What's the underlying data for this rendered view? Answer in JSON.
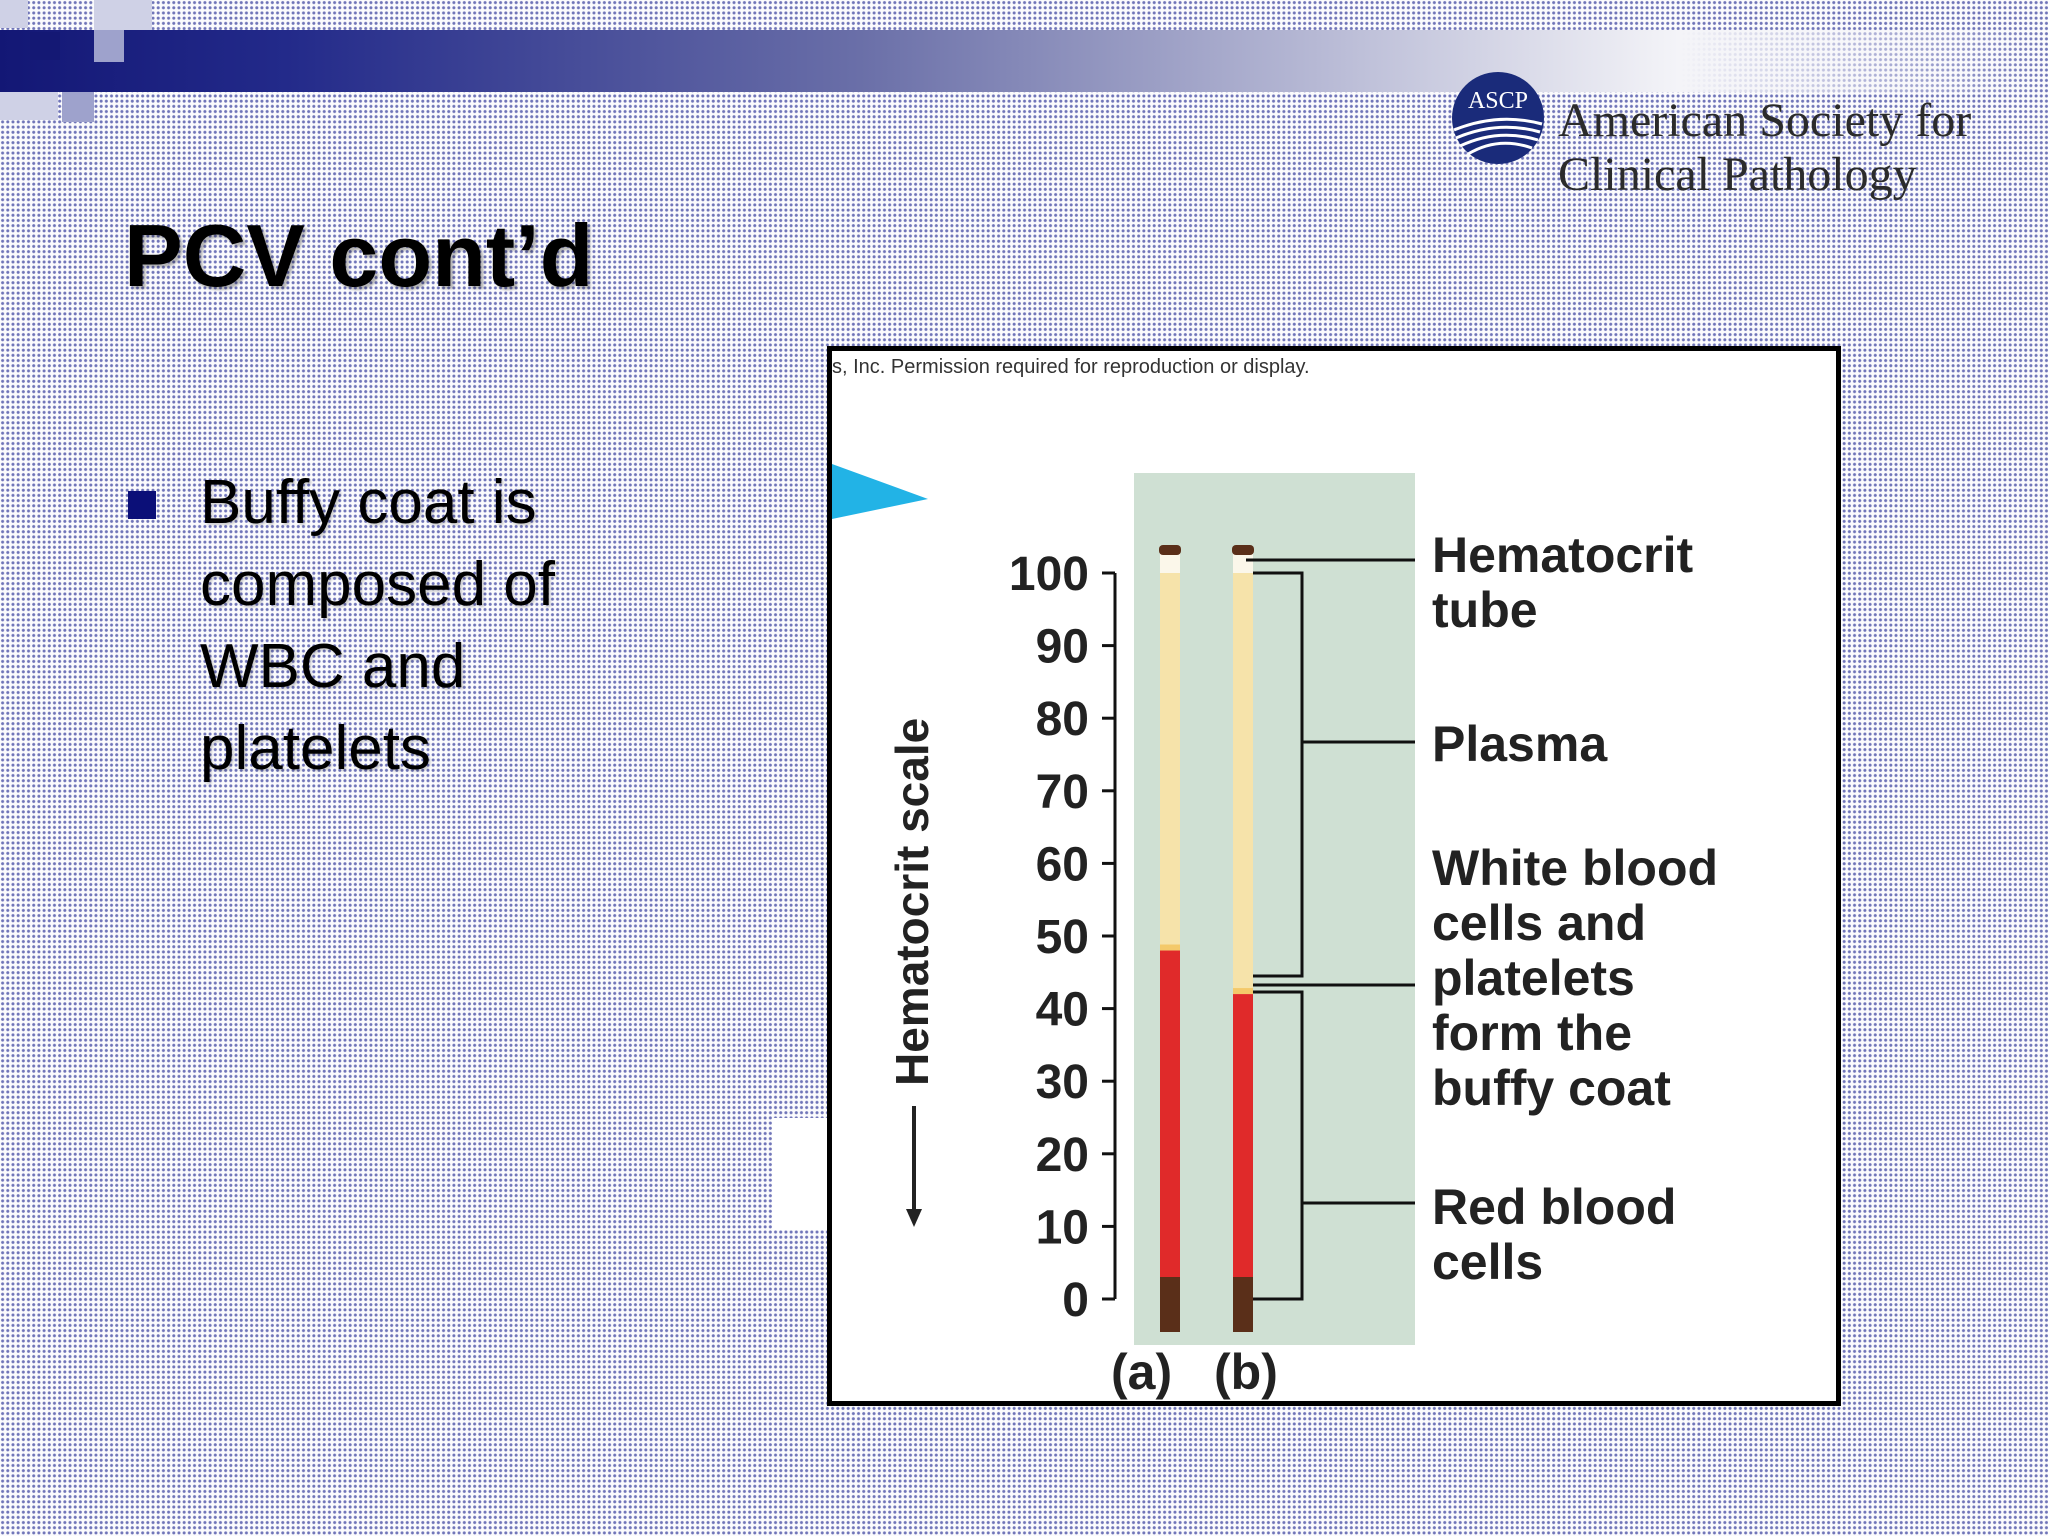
{
  "slide": {
    "title": "PCV cont’d",
    "bullets": [
      "Buffy coat is composed of WBC and platelets"
    ]
  },
  "logo": {
    "badge": "ASCP",
    "name_line1": "American Society for",
    "name_line2": "Clinical Pathology"
  },
  "figure": {
    "permission_note": "s, Inc. Permission required for reproduction or display.",
    "scale_label": "Hematocrit scale",
    "ticks": [
      "100",
      "90",
      "80",
      "70",
      "60",
      "50",
      "40",
      "30",
      "20",
      "10",
      "0"
    ],
    "tube_labels": [
      "(a)",
      "(b)"
    ],
    "labels": {
      "tube": [
        "Hematocrit",
        "tube"
      ],
      "plasma": [
        "Plasma"
      ],
      "buffy": [
        "White blood",
        "cells and",
        "platelets",
        "form the",
        "buffy coat"
      ],
      "rbc": [
        "Red blood",
        "cells"
      ]
    },
    "hematocrit_values": {
      "a": 48,
      "b": 42
    }
  },
  "colors": {
    "title_bar": "#131775",
    "bullet": "#0b0f78",
    "panel": "#cfe0d3",
    "plasma": "#f6e3aa",
    "rbc": "#e02a2a",
    "buffy": "#ffffff",
    "plug": "#5a2f19",
    "pointer": "#22b3e6"
  }
}
